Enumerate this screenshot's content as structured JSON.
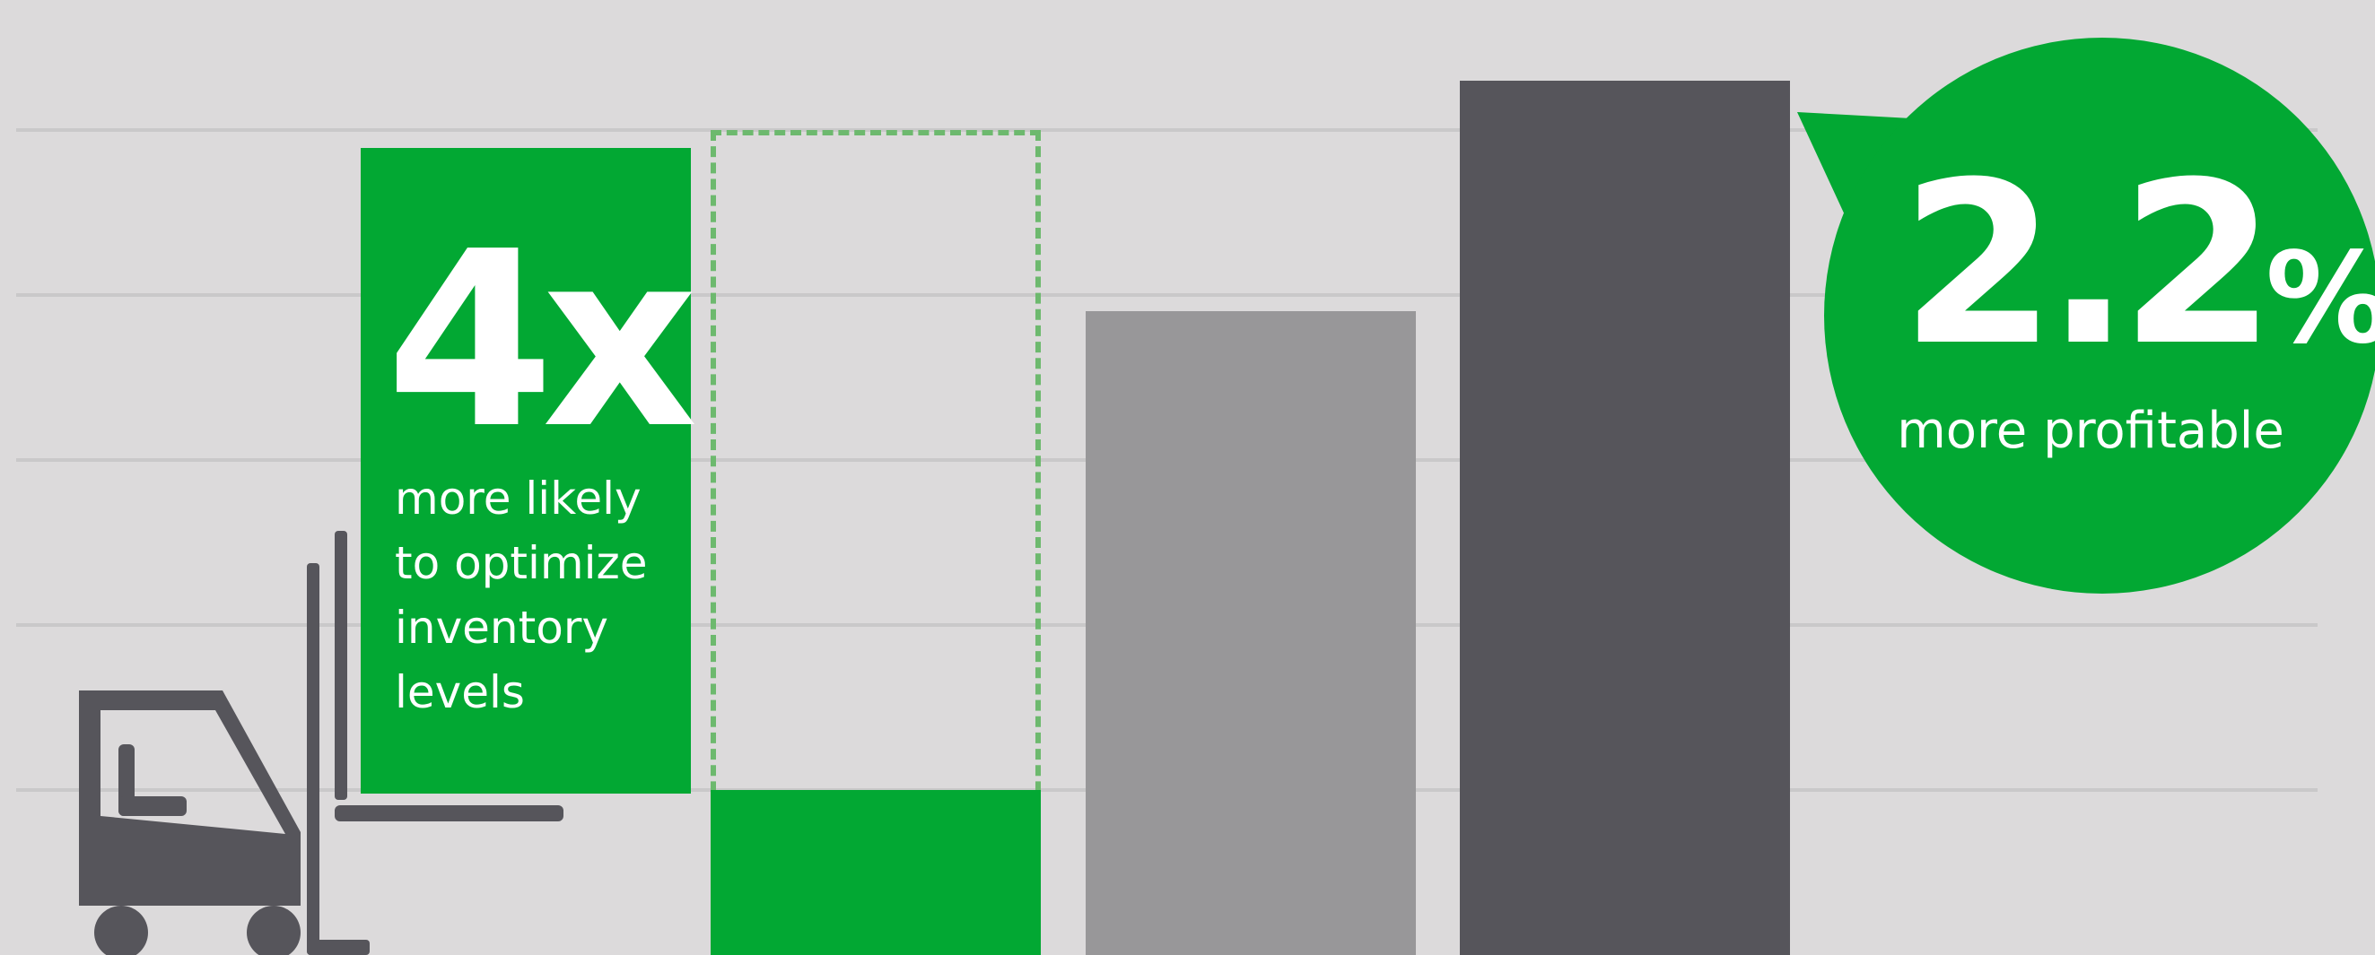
{
  "chart_data": {
    "type": "bar",
    "title": "",
    "xlabel": "",
    "ylabel": "",
    "ylim": [
      0,
      6
    ],
    "gridlines": [
      1,
      2,
      3,
      4,
      5
    ],
    "bars": [
      {
        "value": 1.0,
        "outline_value": 5.0,
        "color": "#02a833",
        "outline_color": "#6db96e"
      },
      {
        "value": 3.9,
        "color": "#989799"
      },
      {
        "value": 5.3,
        "color": "#56555b"
      }
    ]
  },
  "callouts": {
    "likely": {
      "number": "4x",
      "text": [
        "more likely",
        "to optimize",
        "inventory",
        "levels"
      ],
      "color": "#02a833"
    },
    "profitable": {
      "number": "2.2",
      "unit": "%",
      "text": "more profitable",
      "color": "#02a833"
    }
  },
  "icons": {
    "forklift": "forklift-icon",
    "forklift_color": "#56555b"
  }
}
